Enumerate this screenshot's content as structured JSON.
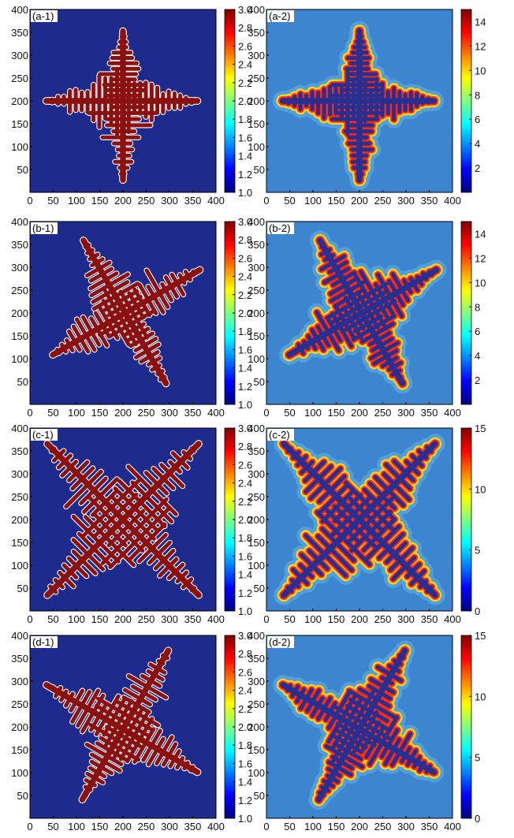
{
  "figure": {
    "description_note": "Eight square field maps (4 rows x 2 columns) each with a vertical colour bar"
  },
  "chart_data": [
    {
      "type": "heatmap",
      "title": "(a-1)",
      "xlim": [
        0,
        400
      ],
      "ylim": [
        0,
        400
      ],
      "xticks": [
        "0",
        "50",
        "100",
        "150",
        "200",
        "250",
        "300",
        "350",
        "400"
      ],
      "yticks": [
        "50",
        "100",
        "150",
        "200",
        "250",
        "300",
        "350",
        "400"
      ],
      "colorbar": {
        "range": [
          1.0,
          3.0
        ],
        "ticks": [
          "1.0",
          "1.2",
          "1.4",
          "1.6",
          "1.8",
          "2.0",
          "2.2",
          "2.4",
          "2.6",
          "2.8",
          "3.0"
        ]
      },
      "pattern": "dendrite",
      "arm_angles_deg": [
        0,
        90
      ],
      "center": [
        200,
        200
      ],
      "arm_lengths": [
        160,
        165,
        150,
        170
      ],
      "background": "#1e2a8c",
      "body_color": "#8b1010"
    },
    {
      "type": "heatmap",
      "title": "(a-2)",
      "xlim": [
        0,
        400
      ],
      "ylim": [
        0,
        400
      ],
      "xticks": [
        "0",
        "50",
        "100",
        "150",
        "200",
        "250",
        "300",
        "350",
        "400"
      ],
      "yticks": [
        "50",
        "100",
        "150",
        "200",
        "250",
        "300",
        "350",
        "400"
      ],
      "colorbar": {
        "range": [
          0,
          15
        ],
        "ticks": [
          "2",
          "4",
          "6",
          "8",
          "10",
          "12",
          "14"
        ]
      },
      "pattern": "field",
      "arm_angles_deg": [
        0,
        90
      ],
      "center": [
        200,
        200
      ],
      "arm_lengths": [
        160,
        165,
        150,
        170
      ],
      "background": "#3d86cf",
      "body_color": "#2a2f8f"
    },
    {
      "type": "heatmap",
      "title": "(b-1)",
      "xlim": [
        0,
        400
      ],
      "ylim": [
        0,
        400
      ],
      "xticks": [
        "0",
        "50",
        "100",
        "150",
        "200",
        "250",
        "300",
        "350",
        "400"
      ],
      "yticks": [
        "50",
        "100",
        "150",
        "200",
        "250",
        "300",
        "350",
        "400"
      ],
      "colorbar": {
        "range": [
          1.0,
          3.0
        ],
        "ticks": [
          "1.0",
          "1.2",
          "1.4",
          "1.6",
          "1.8",
          "2.0",
          "2.2",
          "2.4",
          "2.6",
          "2.8",
          "3.0"
        ]
      },
      "pattern": "dendrite",
      "arm_angles_deg": [
        30,
        120
      ],
      "center": [
        205,
        200
      ],
      "arm_lengths": [
        185,
        180,
        180,
        175
      ],
      "background": "#1e2a8c",
      "body_color": "#8b1010"
    },
    {
      "type": "heatmap",
      "title": "(b-2)",
      "xlim": [
        0,
        400
      ],
      "ylim": [
        0,
        400
      ],
      "xticks": [
        "0",
        "50",
        "100",
        "150",
        "200",
        "250",
        "300",
        "350",
        "400"
      ],
      "yticks": [
        "50",
        "100",
        "150",
        "200",
        "250",
        "300",
        "350",
        "400"
      ],
      "colorbar": {
        "range": [
          0,
          15
        ],
        "ticks": [
          "2",
          "4",
          "6",
          "8",
          "10",
          "12",
          "14"
        ]
      },
      "pattern": "field",
      "arm_angles_deg": [
        30,
        120
      ],
      "center": [
        205,
        200
      ],
      "arm_lengths": [
        185,
        180,
        180,
        175
      ],
      "background": "#3d86cf",
      "body_color": "#2a2f8f"
    },
    {
      "type": "heatmap",
      "title": "(c-1)",
      "xlim": [
        0,
        400
      ],
      "ylim": [
        0,
        400
      ],
      "xticks": [
        "0",
        "50",
        "100",
        "150",
        "200",
        "250",
        "300",
        "350",
        "400"
      ],
      "yticks": [
        "50",
        "100",
        "150",
        "200",
        "250",
        "300",
        "350",
        "400"
      ],
      "colorbar": {
        "range": [
          1.0,
          3.0
        ],
        "ticks": [
          "1.0",
          "1.2",
          "1.4",
          "1.6",
          "1.8",
          "2.0",
          "2.2",
          "2.4",
          "2.6",
          "2.8",
          "3.0"
        ]
      },
      "pattern": "dendrite",
      "arm_angles_deg": [
        45,
        135
      ],
      "center": [
        200,
        200
      ],
      "arm_lengths": [
        230,
        230,
        230,
        230
      ],
      "background": "#1e2a8c",
      "body_color": "#8b1010"
    },
    {
      "type": "heatmap",
      "title": "(c-2)",
      "xlim": [
        0,
        400
      ],
      "ylim": [
        0,
        400
      ],
      "xticks": [
        "0",
        "50",
        "100",
        "150",
        "200",
        "250",
        "300",
        "350",
        "400"
      ],
      "yticks": [
        "50",
        "100",
        "150",
        "200",
        "250",
        "300",
        "350",
        "400"
      ],
      "colorbar": {
        "range": [
          0,
          15
        ],
        "ticks": [
          "0",
          "5",
          "10",
          "15"
        ]
      },
      "pattern": "field",
      "arm_angles_deg": [
        45,
        135
      ],
      "center": [
        200,
        200
      ],
      "arm_lengths": [
        230,
        230,
        230,
        230
      ],
      "background": "#3d86cf",
      "body_color": "#2a2f8f"
    },
    {
      "type": "heatmap",
      "title": "(d-1)",
      "xlim": [
        0,
        400
      ],
      "ylim": [
        0,
        400
      ],
      "xticks": [
        "0",
        "50",
        "100",
        "150",
        "200",
        "250",
        "300",
        "350",
        "400"
      ],
      "yticks": [
        "50",
        "100",
        "150",
        "200",
        "250",
        "300",
        "350",
        "400"
      ],
      "colorbar": {
        "range": [
          1.0,
          3.0
        ],
        "ticks": [
          "1.0",
          "1.2",
          "1.4",
          "1.6",
          "1.8",
          "2.0",
          "2.2",
          "2.4",
          "2.6",
          "2.8",
          "3.0"
        ]
      },
      "pattern": "dendrite",
      "arm_angles_deg": [
        60,
        150
      ],
      "center": [
        200,
        195
      ],
      "arm_lengths": [
        195,
        175,
        190,
        185
      ],
      "background": "#1e2a8c",
      "body_color": "#8b1010"
    },
    {
      "type": "heatmap",
      "title": "(d-2)",
      "xlim": [
        0,
        400
      ],
      "ylim": [
        0,
        400
      ],
      "xticks": [
        "0",
        "50",
        "100",
        "150",
        "200",
        "250",
        "300",
        "350",
        "400"
      ],
      "yticks": [
        "50",
        "100",
        "150",
        "200",
        "250",
        "300",
        "350",
        "400"
      ],
      "colorbar": {
        "range": [
          0,
          15
        ],
        "ticks": [
          "0",
          "5",
          "10",
          "15"
        ]
      },
      "pattern": "field",
      "arm_angles_deg": [
        60,
        150
      ],
      "center": [
        200,
        195
      ],
      "arm_lengths": [
        195,
        175,
        190,
        185
      ],
      "background": "#3d86cf",
      "body_color": "#2a2f8f"
    }
  ],
  "colors": {
    "jet": [
      "#00007f",
      "#0000ff",
      "#0080ff",
      "#00ffff",
      "#80ff80",
      "#ffff00",
      "#ff8000",
      "#ff0000",
      "#7f0000"
    ],
    "halo": "#ffd21f",
    "edge": "#ff2a10",
    "outline": "#ffffff"
  }
}
